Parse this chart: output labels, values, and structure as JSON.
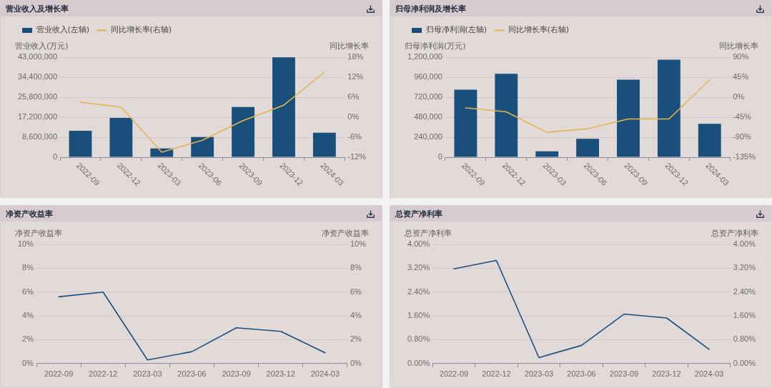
{
  "chart_data": [
    {
      "type": "bar",
      "title": "营业收入及增长率",
      "ylabel": "营业收入(万元)",
      "y2label": "同比增长率",
      "categories": [
        "2022-09",
        "2022-12",
        "2023-03",
        "2023-06",
        "2023-09",
        "2023-12",
        "2024-03"
      ],
      "series": [
        {
          "name": "营业收入(左轴)",
          "color": "#1a4f7c",
          "values": [
            11400000,
            16900000,
            3800000,
            8700000,
            21600000,
            42900000,
            10500000
          ]
        },
        {
          "name": "同比增长率(右轴)",
          "type": "line",
          "axis": "y2",
          "color": "#e2b552",
          "values": [
            4.5,
            3.0,
            -10.5,
            -6.9,
            -1.0,
            3.6,
            13.5
          ]
        }
      ],
      "ylim": [
        0,
        43000000
      ],
      "yticks": [
        0,
        {
          "value": 8600000,
          "label": "8,600,000"
        },
        {
          "value": 17200000,
          "label": "17,200,000"
        },
        {
          "value": 25800000,
          "label": "25,800,000"
        },
        {
          "value": 34400000,
          "label": "34,400,000"
        },
        {
          "value": 43000000,
          "label": "43,000,000"
        }
      ],
      "y2lim": [
        -12,
        18
      ],
      "y2ticks": [
        {
          "value": -12,
          "label": "-12%"
        },
        {
          "value": -6,
          "label": "-6%"
        },
        {
          "value": 0,
          "label": "0%"
        },
        {
          "value": 6,
          "label": "6%"
        },
        {
          "value": 12,
          "label": "12%"
        },
        {
          "value": 18,
          "label": "18%"
        }
      ],
      "grid": "y",
      "legend": "top left",
      "marker": "none"
    },
    {
      "type": "bar",
      "title": "归母净利润及增长率",
      "ylabel": "归母净利润(万元)",
      "y2label": "同比增长率",
      "categories": [
        "2022-09",
        "2022-12",
        "2023-03",
        "2023-06",
        "2023-09",
        "2023-12",
        "2024-03"
      ],
      "series": [
        {
          "name": "归母净利润(左轴)",
          "color": "#1a4f7c",
          "values": [
            810000,
            1000000,
            70000,
            220000,
            930000,
            1170000,
            400000
          ]
        },
        {
          "name": "同比增长率(右轴)",
          "type": "line",
          "axis": "y2",
          "color": "#e2b552",
          "values": [
            -24,
            -33,
            -79,
            -71,
            -49,
            -49,
            39
          ]
        }
      ],
      "ylim": [
        0,
        1200000
      ],
      "yticks": [
        0,
        {
          "value": 240000,
          "label": "240,000"
        },
        {
          "value": 480000,
          "label": "480,000"
        },
        {
          "value": 720000,
          "label": "720,000"
        },
        {
          "value": 960000,
          "label": "960,000"
        },
        {
          "value": 1200000,
          "label": "1,200,000"
        }
      ],
      "y2lim": [
        -135,
        90
      ],
      "y2ticks": [
        {
          "value": -135,
          "label": "-135%"
        },
        {
          "value": -90,
          "label": "-90%"
        },
        {
          "value": -45,
          "label": "-45%"
        },
        {
          "value": 0,
          "label": "0%"
        },
        {
          "value": 45,
          "label": "45%"
        },
        {
          "value": 90,
          "label": "90%"
        }
      ],
      "grid": "y",
      "legend": "top left",
      "marker": "none"
    },
    {
      "type": "line",
      "title": "净资产收益率",
      "ylabel": "净资产收益率",
      "y2label": "净资产收益率",
      "categories": [
        "2022-09",
        "2022-12",
        "2023-03",
        "2023-06",
        "2023-09",
        "2023-12",
        "2024-03"
      ],
      "series": [
        {
          "color": "#1d4f7c",
          "values": [
            5.6,
            6.0,
            0.3,
            1.0,
            3.0,
            2.7,
            0.9
          ]
        }
      ],
      "ylim": [
        0,
        10
      ],
      "yticks": [
        {
          "value": 0,
          "label": "0%"
        },
        {
          "value": 2,
          "label": "2%"
        },
        {
          "value": 4,
          "label": "4%"
        },
        {
          "value": 6,
          "label": "6%"
        },
        {
          "value": 8,
          "label": "8%"
        },
        {
          "value": 10,
          "label": "10%"
        }
      ],
      "y2lim": [
        0,
        10
      ],
      "y2ticks": [
        {
          "value": 0,
          "label": "0%"
        },
        {
          "value": 2,
          "label": "2%"
        },
        {
          "value": 4,
          "label": "4%"
        },
        {
          "value": 6,
          "label": "6%"
        },
        {
          "value": 8,
          "label": "8%"
        },
        {
          "value": 10,
          "label": "10%"
        }
      ],
      "grid": "y",
      "marker": "none"
    },
    {
      "type": "line",
      "title": "总资产净利率",
      "ylabel": "总资产净利率",
      "y2label": "总资产净利率",
      "categories": [
        "2022-09",
        "2022-12",
        "2023-03",
        "2023-06",
        "2023-09",
        "2023-12",
        "2024-03"
      ],
      "series": [
        {
          "color": "#1d4f7c",
          "values": [
            3.18,
            3.46,
            0.2,
            0.61,
            1.66,
            1.53,
            0.48
          ]
        }
      ],
      "ylim": [
        0,
        4
      ],
      "yticks": [
        {
          "value": 0,
          "label": "0.00%"
        },
        {
          "value": 0.8,
          "label": "0.80%"
        },
        {
          "value": 1.6,
          "label": "1.60%"
        },
        {
          "value": 2.4,
          "label": "2.40%"
        },
        {
          "value": 3.2,
          "label": "3.20%"
        },
        {
          "value": 4,
          "label": "4.00%"
        }
      ],
      "y2lim": [
        0,
        4
      ],
      "y2ticks": [
        {
          "value": 0,
          "label": "0.00%"
        },
        {
          "value": 0.8,
          "label": "0.80%"
        },
        {
          "value": 1.6,
          "label": "1.60%"
        },
        {
          "value": 2.4,
          "label": "2.40%"
        },
        {
          "value": 3.2,
          "label": "3.20%"
        },
        {
          "value": 4,
          "label": "4.00%"
        }
      ],
      "grid": "y",
      "marker": "none"
    }
  ]
}
